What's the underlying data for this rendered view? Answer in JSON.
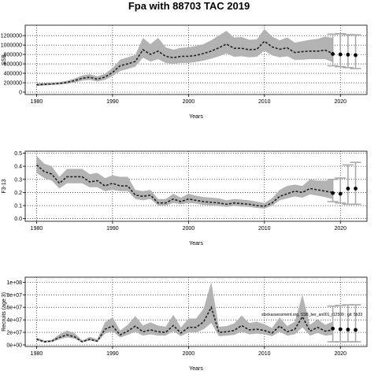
{
  "title": "Fpa with 88703 TAC 2019",
  "note": "stockassessment.org, SSB_ber_an001_r12509 ; git: 5b33",
  "chart_data": [
    {
      "type": "line",
      "name": "ssb",
      "xlabel": "Years",
      "ylabel": "SSB",
      "xlim": [
        1978.5,
        2023.5
      ],
      "ylim": [
        -50000,
        1420000
      ],
      "xticks": [
        1980,
        1990,
        2000,
        2010,
        2020
      ],
      "yticks": [
        0,
        200000,
        400000,
        600000,
        800000,
        1000000,
        1200000
      ],
      "ytick_labels": [
        "0",
        "200000",
        "400000",
        "600000",
        "800000",
        "1000000",
        "1200000"
      ],
      "grid": true,
      "x": [
        1980,
        1981,
        1982,
        1983,
        1984,
        1985,
        1986,
        1987,
        1988,
        1989,
        1990,
        1991,
        1992,
        1993,
        1994,
        1995,
        1996,
        1997,
        1998,
        1999,
        2000,
        2001,
        2002,
        2003,
        2004,
        2005,
        2006,
        2007,
        2008,
        2009,
        2010,
        2011,
        2012,
        2013,
        2014,
        2015,
        2016,
        2017,
        2018,
        2019
      ],
      "estimate": [
        155000,
        165000,
        175000,
        185000,
        205000,
        245000,
        295000,
        315000,
        275000,
        320000,
        420000,
        560000,
        600000,
        650000,
        900000,
        800000,
        870000,
        760000,
        730000,
        760000,
        760000,
        780000,
        820000,
        870000,
        940000,
        1020000,
        930000,
        930000,
        900000,
        910000,
        1080000,
        960000,
        910000,
        940000,
        840000,
        860000,
        870000,
        870000,
        890000,
        820000
      ],
      "lower": [
        130000,
        140000,
        150000,
        160000,
        175000,
        205000,
        245000,
        260000,
        225000,
        260000,
        340000,
        450000,
        490000,
        540000,
        730000,
        650000,
        700000,
        620000,
        600000,
        620000,
        620000,
        640000,
        670000,
        710000,
        760000,
        820000,
        750000,
        760000,
        740000,
        750000,
        880000,
        780000,
        740000,
        760000,
        680000,
        690000,
        700000,
        700000,
        700000,
        640000
      ],
      "upper": [
        185000,
        195000,
        205000,
        215000,
        240000,
        290000,
        355000,
        380000,
        335000,
        390000,
        510000,
        690000,
        740000,
        790000,
        1150000,
        1020000,
        1150000,
        950000,
        900000,
        940000,
        950000,
        980000,
        1020000,
        1100000,
        1200000,
        1300000,
        1160000,
        1170000,
        1110000,
        1120000,
        1340000,
        1180000,
        1100000,
        1160000,
        1050000,
        1080000,
        1110000,
        1130000,
        1180000,
        1150000
      ],
      "forecast_x": [
        2019,
        2020,
        2021,
        2022
      ],
      "forecast": [
        810000,
        800000,
        795000,
        785000
      ],
      "forecast_lower": [
        560000,
        540000,
        520000,
        500000
      ],
      "forecast_upper": [
        1230000,
        1240000,
        1220000,
        1215000
      ]
    },
    {
      "type": "line",
      "name": "fbar",
      "xlabel": "Years",
      "ylabel": "F3-13",
      "xlim": [
        1978.5,
        2023.5
      ],
      "ylim": [
        -0.02,
        0.515
      ],
      "xticks": [
        1980,
        1990,
        2000,
        2010,
        2020
      ],
      "yticks": [
        0,
        0.1,
        0.2,
        0.3,
        0.4,
        0.5
      ],
      "ytick_labels": [
        "0.0",
        "0.1",
        "0.2",
        "0.3",
        "0.4",
        "0.5"
      ],
      "grid": true,
      "x": [
        1980,
        1981,
        1982,
        1983,
        1984,
        1985,
        1986,
        1987,
        1988,
        1989,
        1990,
        1991,
        1992,
        1993,
        1994,
        1995,
        1996,
        1997,
        1998,
        1999,
        2000,
        2001,
        2002,
        2003,
        2004,
        2005,
        2006,
        2007,
        2008,
        2009,
        2010,
        2011,
        2012,
        2013,
        2014,
        2015,
        2016,
        2017,
        2018,
        2019
      ],
      "estimate": [
        0.41,
        0.36,
        0.34,
        0.27,
        0.32,
        0.32,
        0.32,
        0.28,
        0.29,
        0.25,
        0.27,
        0.25,
        0.25,
        0.18,
        0.17,
        0.18,
        0.12,
        0.12,
        0.15,
        0.13,
        0.15,
        0.14,
        0.13,
        0.125,
        0.12,
        0.11,
        0.12,
        0.115,
        0.11,
        0.1,
        0.095,
        0.12,
        0.17,
        0.19,
        0.21,
        0.2,
        0.23,
        0.22,
        0.21,
        0.2
      ],
      "lower": [
        0.35,
        0.31,
        0.29,
        0.23,
        0.27,
        0.27,
        0.27,
        0.24,
        0.24,
        0.21,
        0.22,
        0.21,
        0.21,
        0.15,
        0.14,
        0.15,
        0.1,
        0.1,
        0.12,
        0.11,
        0.12,
        0.115,
        0.105,
        0.1,
        0.097,
        0.09,
        0.097,
        0.093,
        0.09,
        0.082,
        0.078,
        0.098,
        0.14,
        0.155,
        0.17,
        0.16,
        0.185,
        0.175,
        0.165,
        0.15
      ],
      "upper": [
        0.48,
        0.42,
        0.4,
        0.32,
        0.38,
        0.38,
        0.38,
        0.34,
        0.35,
        0.31,
        0.33,
        0.32,
        0.32,
        0.22,
        0.21,
        0.22,
        0.15,
        0.15,
        0.19,
        0.16,
        0.19,
        0.175,
        0.165,
        0.16,
        0.155,
        0.14,
        0.15,
        0.145,
        0.14,
        0.13,
        0.12,
        0.155,
        0.22,
        0.25,
        0.26,
        0.25,
        0.3,
        0.29,
        0.29,
        0.3
      ],
      "forecast_x": [
        2019,
        2020,
        2021,
        2022
      ],
      "forecast": [
        0.195,
        0.19,
        0.23,
        0.23
      ],
      "forecast_lower": [
        0.13,
        0.12,
        0.11,
        0.11
      ],
      "forecast_upper": [
        0.3,
        0.31,
        0.41,
        0.43
      ]
    },
    {
      "type": "line",
      "name": "recruitment",
      "xlabel": "Years",
      "ylabel": "Recruits (age 3)",
      "xlim": [
        1978.5,
        2023.5
      ],
      "ylim": [
        -2500000.0,
        108000000.0
      ],
      "xticks": [
        1980,
        1990,
        2000,
        2010,
        2020
      ],
      "yticks": [
        0,
        20000000,
        40000000,
        60000000,
        80000000,
        100000000
      ],
      "ytick_labels": [
        "0e+00",
        "2e+07",
        "4e+07",
        "6e+07",
        "8e+07",
        "1e+08"
      ],
      "grid": true,
      "x": [
        1980,
        1981,
        1982,
        1983,
        1984,
        1985,
        1986,
        1987,
        1988,
        1989,
        1990,
        1991,
        1992,
        1993,
        1994,
        1995,
        1996,
        1997,
        1998,
        1999,
        2000,
        2001,
        2002,
        2003,
        2004,
        2005,
        2006,
        2007,
        2008,
        2009,
        2010,
        2011,
        2012,
        2013,
        2014,
        2015,
        2016,
        2017,
        2018,
        2019
      ],
      "estimate": [
        9000000,
        5000000,
        6000000,
        12000000,
        16000000,
        13000000,
        5000000,
        9000000,
        6000000,
        25000000,
        30000000,
        16000000,
        22000000,
        30000000,
        21000000,
        24000000,
        21000000,
        20000000,
        31000000,
        19000000,
        28000000,
        28000000,
        37000000,
        60000000,
        20000000,
        21000000,
        23000000,
        31000000,
        24000000,
        25000000,
        23000000,
        19000000,
        30000000,
        21000000,
        25000000,
        45000000,
        22000000,
        28000000,
        22000000,
        24000000
      ],
      "lower": [
        7000000,
        4000000,
        4500000,
        9000000,
        12000000,
        10000000,
        4000000,
        7000000,
        4500000,
        18000000,
        22000000,
        12000000,
        16000000,
        21000000,
        15000000,
        17000000,
        15000000,
        15000000,
        22000000,
        14000000,
        20000000,
        20000000,
        25000000,
        35000000,
        14000000,
        15000000,
        16000000,
        21000000,
        17000000,
        18000000,
        17000000,
        14000000,
        21000000,
        15000000,
        17000000,
        28000000,
        15000000,
        19000000,
        15000000,
        16000000
      ],
      "upper": [
        12000000,
        7000000,
        8000000,
        17000000,
        23000000,
        19000000,
        7000000,
        13000000,
        9000000,
        36000000,
        44000000,
        23000000,
        32000000,
        46000000,
        31000000,
        36000000,
        31000000,
        29000000,
        48000000,
        28000000,
        42000000,
        42000000,
        58000000,
        100000000,
        29000000,
        30000000,
        34000000,
        47000000,
        35000000,
        37000000,
        33000000,
        27000000,
        44000000,
        30000000,
        37000000,
        80000000,
        32000000,
        41000000,
        32000000,
        37000000
      ],
      "forecast_x": [
        2019,
        2020,
        2021,
        2022
      ],
      "forecast": [
        26000000,
        25000000,
        24500000,
        24000000
      ],
      "forecast_lower": [
        5000000,
        5000000,
        5000000,
        5000000
      ],
      "forecast_upper": [
        62000000,
        63000000,
        64000000,
        64000000
      ]
    }
  ]
}
